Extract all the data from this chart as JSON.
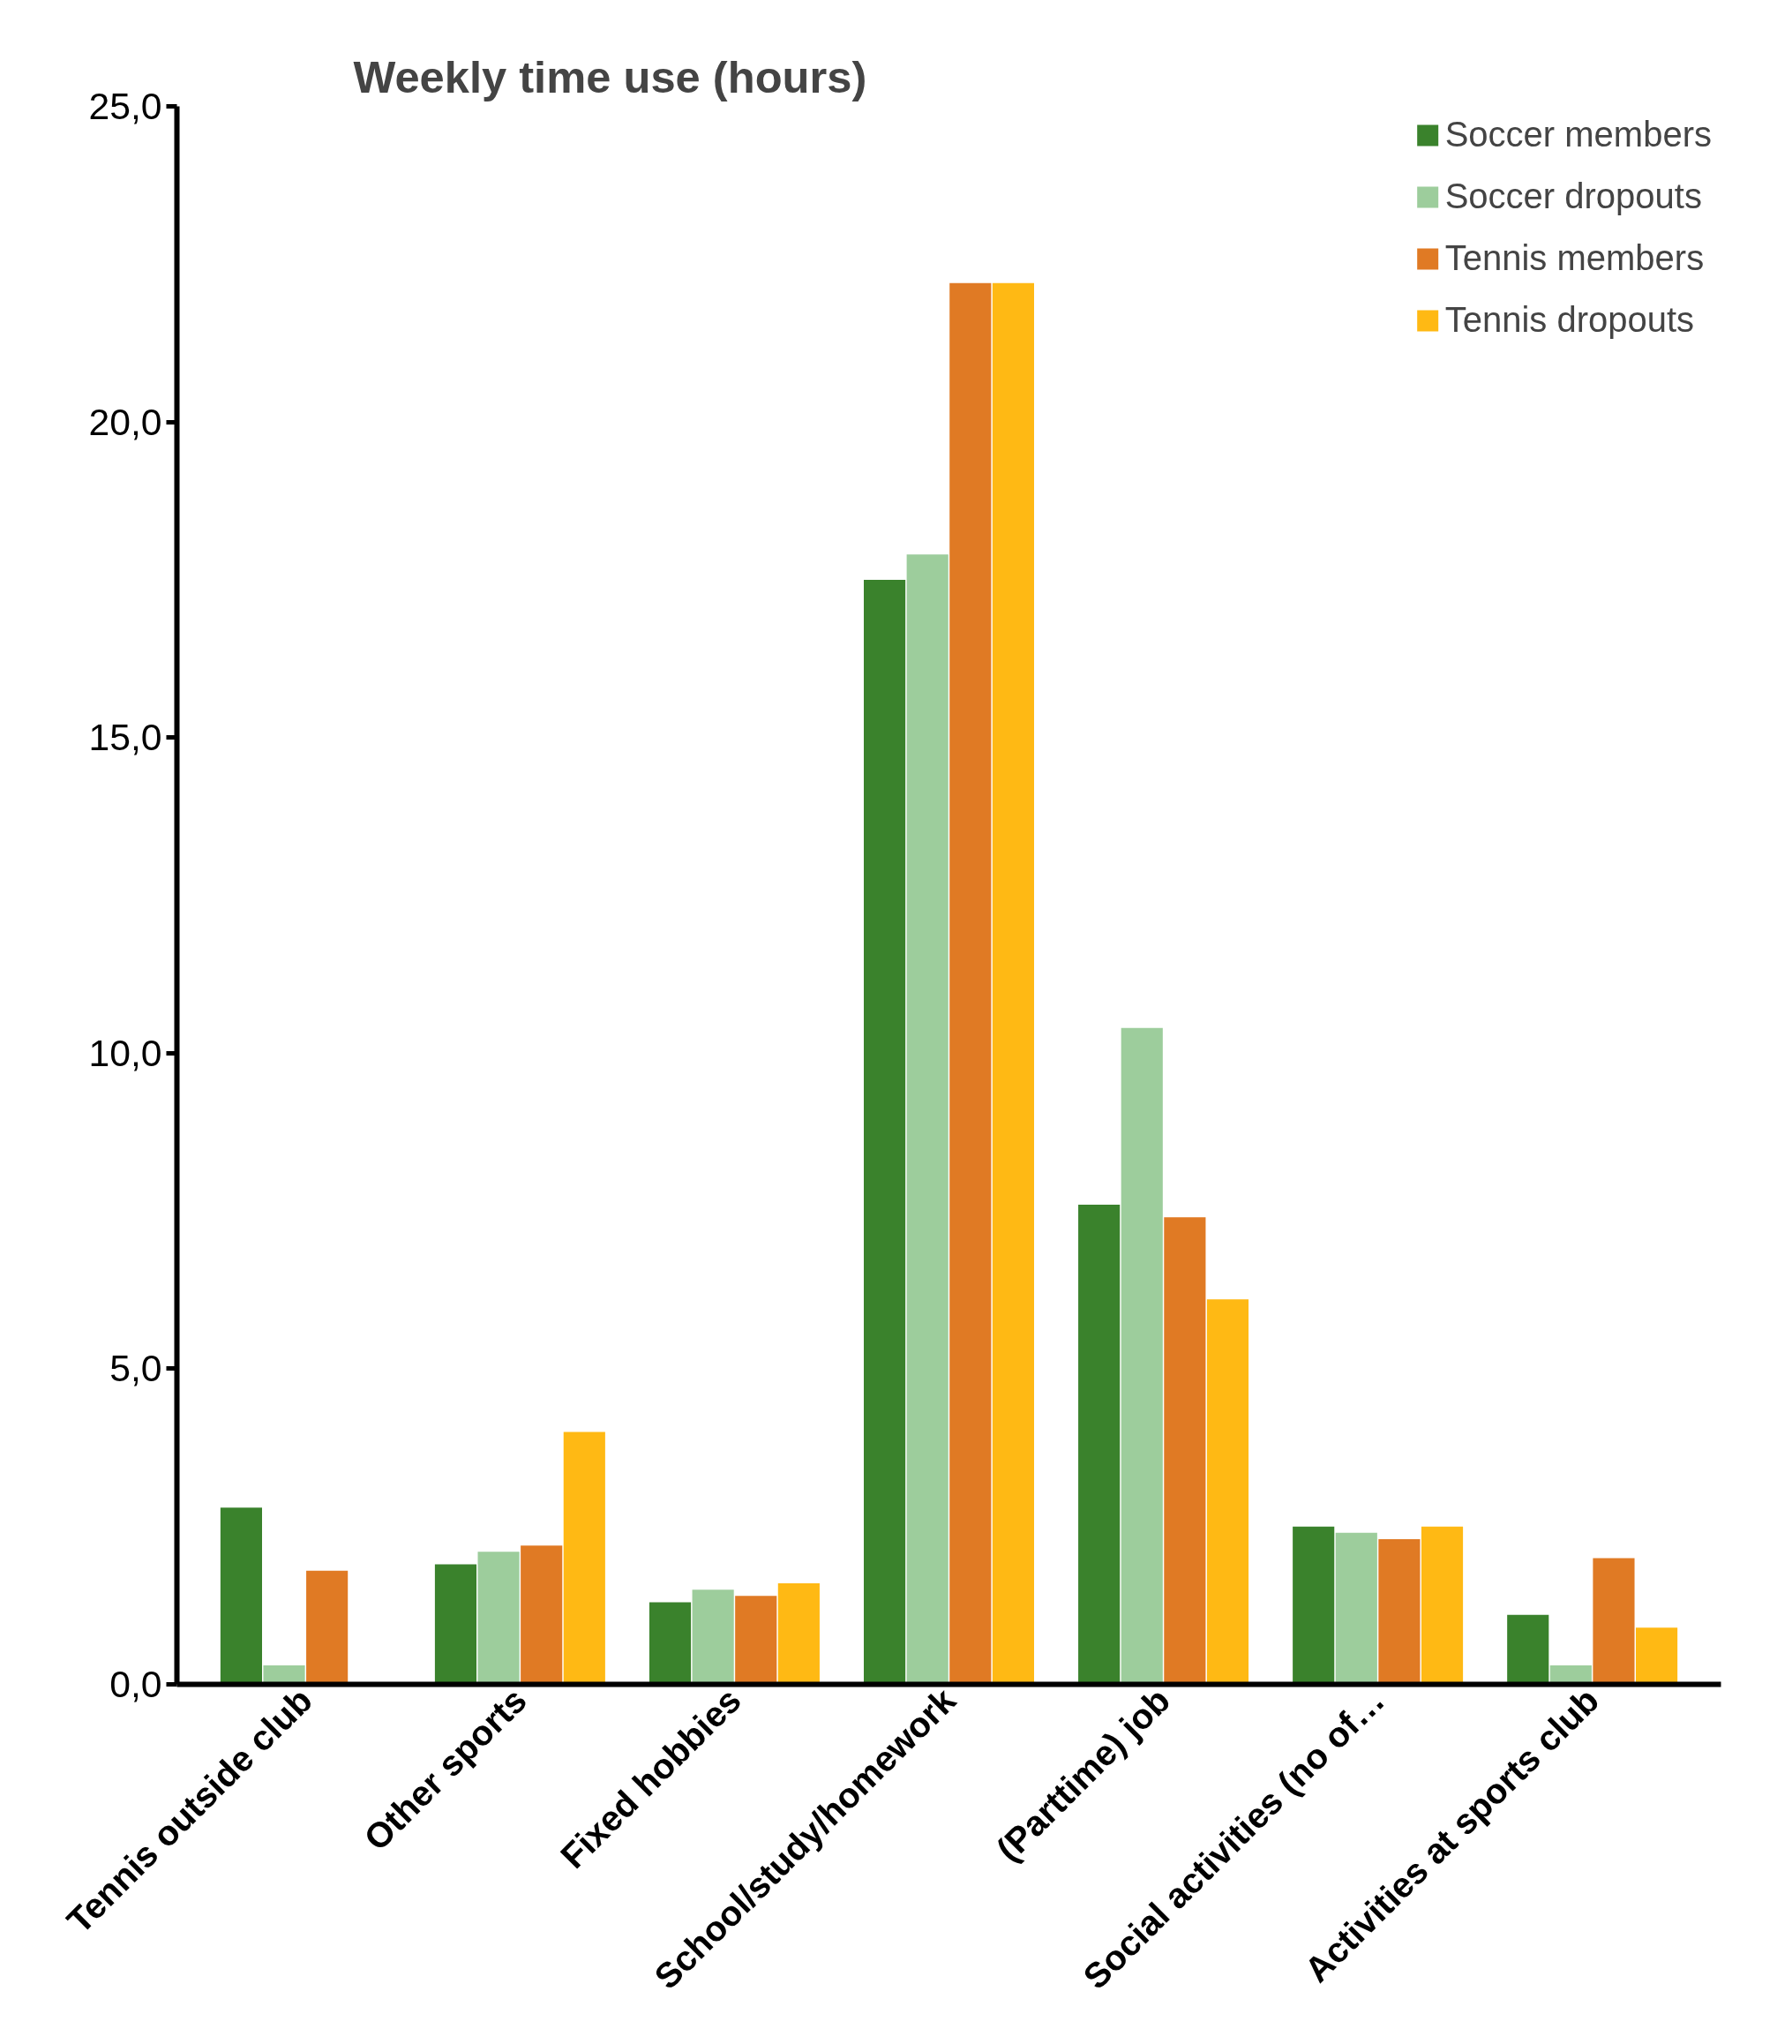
{
  "chart_data": {
    "type": "bar",
    "title": "Weekly time use (hours)",
    "categories": [
      "Tennis outside club",
      "Other sports",
      "Fixed hobbies",
      "School/study/homework",
      "(Parttime) job",
      "Social activities (no of…",
      "Activities at sports club"
    ],
    "series": [
      {
        "name": "Soccer members",
        "color": "#3a822c",
        "values": [
          2.8,
          1.9,
          1.3,
          17.5,
          7.6,
          2.5,
          1.1
        ]
      },
      {
        "name": "Soccer dropouts",
        "color": "#9dcd9c",
        "values": [
          0.3,
          2.1,
          1.5,
          17.9,
          10.4,
          2.4,
          0.3
        ]
      },
      {
        "name": "Tennis members",
        "color": "#e07a24",
        "values": [
          1.8,
          2.2,
          1.4,
          22.2,
          7.4,
          2.3,
          2.0
        ]
      },
      {
        "name": "Tennis dropouts",
        "color": "#ffb914",
        "values": [
          0.0,
          4.0,
          1.6,
          22.2,
          6.1,
          2.5,
          0.9
        ]
      }
    ],
    "ylim": [
      0,
      25
    ],
    "yticks": [
      {
        "value": 0,
        "label": "0,0"
      },
      {
        "value": 5,
        "label": "5,0"
      },
      {
        "value": 10,
        "label": "10,0"
      },
      {
        "value": 15,
        "label": "15,0"
      },
      {
        "value": 20,
        "label": "20,0"
      },
      {
        "value": 25,
        "label": "25,0"
      }
    ],
    "legend": "top right"
  }
}
